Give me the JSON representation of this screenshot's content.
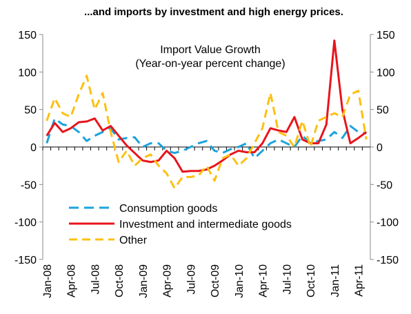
{
  "chart_data": {
    "type": "line",
    "title": "...and imports by investment and high energy prices.",
    "annotation": [
      "Import Value Growth",
      "(Year-on-year percent change)"
    ],
    "categories": [
      "Jan-08",
      null,
      null,
      "Apr-08",
      null,
      null,
      "Jul-08",
      null,
      null,
      "Oct-08",
      null,
      null,
      "Jan-09",
      null,
      null,
      "Apr-09",
      null,
      null,
      "Jul-09",
      null,
      null,
      "Oct-09",
      null,
      null,
      "Jan-10",
      null,
      null,
      "Apr-10",
      null,
      null,
      "Jul-10",
      null,
      null,
      "Oct-10",
      null,
      null,
      "Jan-11",
      null,
      null,
      "Apr-11",
      null
    ],
    "series": [
      {
        "name": "Consumption goods",
        "color": "#1aa3dc",
        "dash": "14 8",
        "values": [
          5,
          38,
          30,
          28,
          20,
          8,
          15,
          20,
          25,
          10,
          12,
          13,
          0,
          5,
          5,
          -5,
          -8,
          -5,
          0,
          5,
          8,
          -5,
          -8,
          -3,
          0,
          5,
          -15,
          -5,
          5,
          10,
          5,
          0,
          15,
          5,
          8,
          10,
          20,
          12,
          28,
          20,
          18
        ]
      },
      {
        "name": "Investment and intermediate goods",
        "color": "#e8141b",
        "dash": "",
        "values": [
          15,
          32,
          20,
          25,
          33,
          34,
          38,
          22,
          28,
          15,
          2,
          -8,
          -18,
          -20,
          -18,
          -5,
          -15,
          -33,
          -32,
          -32,
          -30,
          -25,
          -18,
          -10,
          -5,
          -7,
          -7,
          5,
          25,
          22,
          20,
          40,
          10,
          5,
          5,
          30,
          142,
          50,
          5,
          12,
          20
        ]
      },
      {
        "name": "Other",
        "color": "#fdc010",
        "dash": "12 7",
        "values": [
          35,
          65,
          45,
          40,
          70,
          95,
          50,
          72,
          20,
          -20,
          -5,
          -25,
          -15,
          -10,
          -25,
          -35,
          -55,
          -40,
          -40,
          -38,
          -25,
          -45,
          -15,
          -10,
          -25,
          -15,
          5,
          25,
          72,
          20,
          15,
          0,
          35,
          0,
          35,
          40,
          45,
          40,
          70,
          75,
          10
        ]
      }
    ],
    "ylim": [
      -150,
      150
    ],
    "yticks": [
      -150,
      -100,
      -50,
      0,
      50,
      100,
      150
    ],
    "y2lim": [
      -150,
      150
    ],
    "y2ticks": [
      -150,
      -100,
      -50,
      0,
      50,
      100,
      150
    ],
    "legend": "lower-left"
  }
}
